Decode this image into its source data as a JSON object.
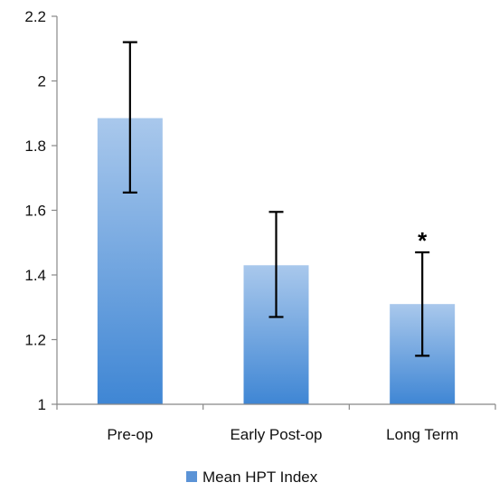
{
  "chart_data": {
    "type": "bar",
    "title": "",
    "xlabel": "",
    "ylabel": "",
    "categories": [
      "Pre-op",
      "Early Post-op",
      "Long Term"
    ],
    "series": [
      {
        "name": "Mean HPT Index",
        "values": [
          1.885,
          1.43,
          1.31
        ],
        "error_low": [
          1.655,
          1.27,
          1.15
        ],
        "error_high": [
          2.12,
          1.595,
          1.47
        ],
        "color": "#5b93d6"
      }
    ],
    "ylim": [
      1,
      2.2
    ],
    "yticks": [
      1,
      1.2,
      1.4,
      1.6,
      1.8,
      2,
      2.2
    ],
    "ytick_labels": [
      "1",
      "1.2",
      "1.4",
      "1.6",
      "1.8",
      "2",
      "2.2"
    ],
    "annotations": [
      {
        "category": "Long Term",
        "text": "*"
      }
    ],
    "grid": false,
    "legend_position": "bottom-center"
  }
}
